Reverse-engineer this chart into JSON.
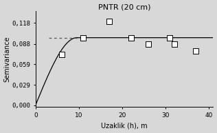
{
  "title": "PNTR (20 cm)",
  "xlabel": "Uzaklik (h), m",
  "ylabel": "Semivariance",
  "xlim": [
    0,
    41
  ],
  "ylim": [
    -0.002,
    0.135
  ],
  "yticks": [
    0.0,
    0.029,
    0.059,
    0.088,
    0.118
  ],
  "ytick_labels": [
    "0,000",
    "0,029",
    "0,059",
    "0,088",
    "0,118"
  ],
  "xticks": [
    0,
    10,
    20,
    30,
    40
  ],
  "xtick_labels": [
    "0",
    "10",
    "20",
    "30",
    "40"
  ],
  "scatter_x": [
    6,
    11,
    17,
    22,
    26,
    31,
    32,
    37
  ],
  "scatter_y": [
    0.073,
    0.097,
    0.12,
    0.097,
    0.088,
    0.097,
    0.088,
    0.078
  ],
  "sill": 0.097,
  "nugget": 0.001,
  "range_param": 9.5,
  "dashed_line_y": 0.097,
  "dashed_line_x_start": 3.0,
  "dashed_line_x_end": 10.5,
  "curve_color": "#000000",
  "scatter_facecolor": "#ffffff",
  "scatter_edgecolor": "#000000",
  "dashed_color": "#555555",
  "background_color": "#d8d8d8",
  "plot_bg_color": "#d8d8d8",
  "title_fontsize": 8,
  "axis_label_fontsize": 7,
  "tick_fontsize": 6.5,
  "scatter_size": 28,
  "linewidth": 0.9
}
